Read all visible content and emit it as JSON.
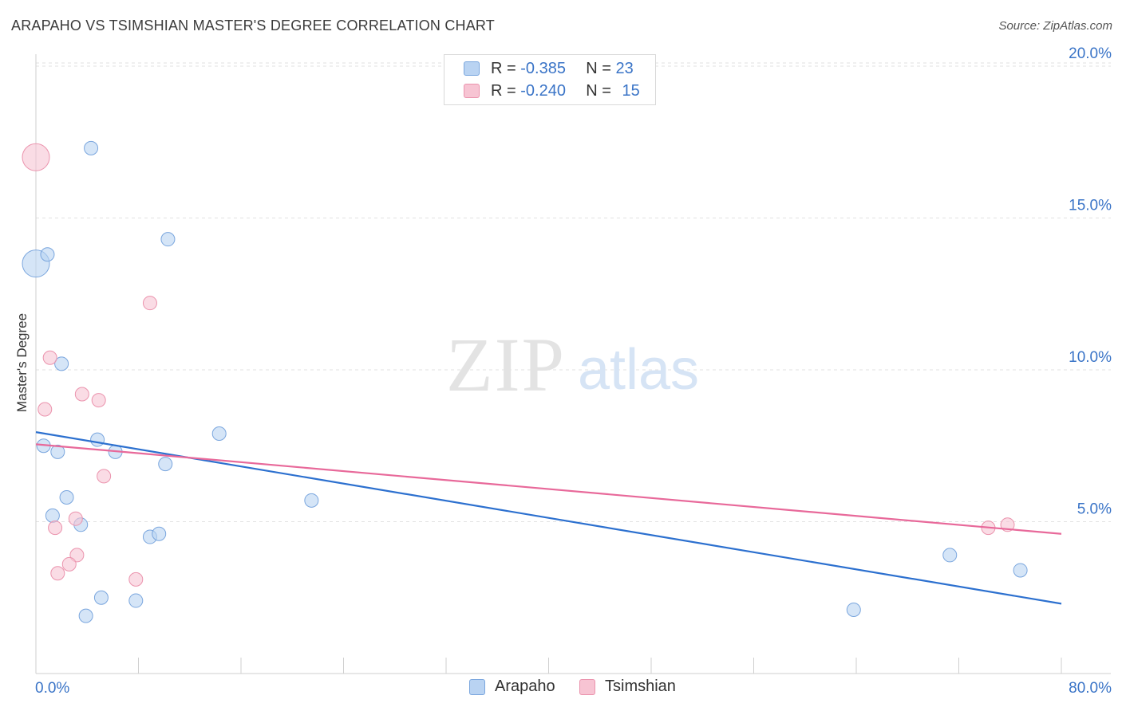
{
  "title": "ARAPAHO VS TSIMSHIAN MASTER'S DEGREE CORRELATION CHART",
  "source": "Source: ZipAtlas.com",
  "watermark": {
    "zip": "ZIP",
    "atlas": "atlas"
  },
  "legend": {
    "r_label": "R =",
    "n_label": "N =",
    "arapaho": {
      "r": "-0.385",
      "n": "23"
    },
    "tsimshian": {
      "r": "-0.240",
      "n": "15"
    }
  },
  "colors": {
    "arapaho_fill": "#b9d3f2",
    "arapaho_stroke": "#7aa6de",
    "arapaho_line": "#2c70cf",
    "tsimshian_fill": "#f7c4d3",
    "tsimshian_stroke": "#eb93ad",
    "tsimshian_line": "#e8699a",
    "axis_text": "#3a74c7"
  },
  "chart_data": {
    "type": "scatter",
    "title": "ARAPAHO VS TSIMSHIAN MASTER'S DEGREE CORRELATION CHART",
    "xlabel": "",
    "ylabel": "Master's Degree",
    "xlim": [
      0,
      80
    ],
    "ylim": [
      0,
      20
    ],
    "x_tick_labels": [
      "0.0%",
      "80.0%"
    ],
    "y_ticks": [
      5,
      10,
      15,
      20
    ],
    "y_tick_labels": [
      "5.0%",
      "10.0%",
      "15.0%",
      "20.0%"
    ],
    "legend_position": "bottom-center",
    "series": [
      {
        "name": "Arapaho",
        "points": [
          {
            "x": 0.0,
            "y": 13.5,
            "big": true
          },
          {
            "x": 0.9,
            "y": 13.8
          },
          {
            "x": 4.3,
            "y": 17.3
          },
          {
            "x": 10.3,
            "y": 14.3
          },
          {
            "x": 2.0,
            "y": 10.2
          },
          {
            "x": 0.6,
            "y": 7.5
          },
          {
            "x": 1.7,
            "y": 7.3
          },
          {
            "x": 4.8,
            "y": 7.7
          },
          {
            "x": 6.2,
            "y": 7.3
          },
          {
            "x": 10.1,
            "y": 6.9
          },
          {
            "x": 14.3,
            "y": 7.9
          },
          {
            "x": 2.4,
            "y": 5.8
          },
          {
            "x": 1.3,
            "y": 5.2
          },
          {
            "x": 3.5,
            "y": 4.9
          },
          {
            "x": 8.9,
            "y": 4.5
          },
          {
            "x": 9.6,
            "y": 4.6
          },
          {
            "x": 21.5,
            "y": 5.7
          },
          {
            "x": 5.1,
            "y": 2.5
          },
          {
            "x": 7.8,
            "y": 2.4
          },
          {
            "x": 3.9,
            "y": 1.9
          },
          {
            "x": 63.8,
            "y": 2.1
          },
          {
            "x": 71.3,
            "y": 3.9
          },
          {
            "x": 76.8,
            "y": 3.4
          }
        ],
        "trend": {
          "x0": 0,
          "y0": 7.95,
          "x1": 80,
          "y1": 2.3
        }
      },
      {
        "name": "Tsimshian",
        "points": [
          {
            "x": 0.0,
            "y": 17.0,
            "big": true
          },
          {
            "x": 8.9,
            "y": 12.2
          },
          {
            "x": 1.1,
            "y": 10.4
          },
          {
            "x": 0.7,
            "y": 8.7
          },
          {
            "x": 3.6,
            "y": 9.2
          },
          {
            "x": 4.9,
            "y": 9.0
          },
          {
            "x": 5.3,
            "y": 6.5
          },
          {
            "x": 1.5,
            "y": 4.8
          },
          {
            "x": 3.1,
            "y": 5.1
          },
          {
            "x": 3.2,
            "y": 3.9
          },
          {
            "x": 2.6,
            "y": 3.6
          },
          {
            "x": 1.7,
            "y": 3.3
          },
          {
            "x": 7.8,
            "y": 3.1
          },
          {
            "x": 74.3,
            "y": 4.8
          },
          {
            "x": 75.8,
            "y": 4.9
          }
        ],
        "trend": {
          "x0": 0,
          "y0": 7.55,
          "x1": 80,
          "y1": 4.6
        }
      }
    ]
  }
}
